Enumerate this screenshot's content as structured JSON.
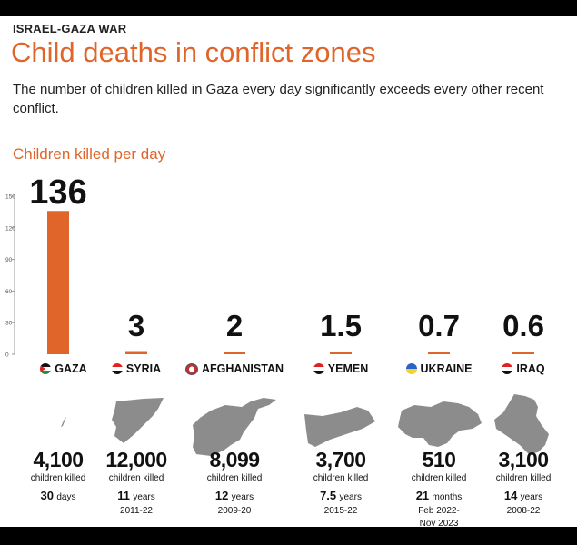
{
  "header": {
    "kicker": "ISRAEL-GAZA WAR",
    "title": "Child deaths in conflict zones",
    "subtitle": "The number of children killed in Gaza every day significantly exceeds every other recent conflict."
  },
  "colors": {
    "accent": "#e0652a",
    "map": "#8c8c8c",
    "text": "#111111"
  },
  "chart_data": {
    "type": "bar",
    "title": "Children killed per day",
    "categories": [
      "GAZA",
      "SYRIA",
      "AFGHANISTAN",
      "YEMEN",
      "UKRAINE",
      "IRAQ"
    ],
    "values": [
      136,
      3,
      2,
      1.5,
      0.7,
      0.6
    ],
    "value_labels": [
      "136",
      "3",
      "2",
      "1.5",
      "0.7",
      "0.6"
    ],
    "ylim": [
      0,
      150
    ],
    "yticks": [
      0,
      30,
      60,
      90,
      120,
      150
    ],
    "xlabel": "",
    "ylabel": ""
  },
  "countries": [
    {
      "name": "GAZA",
      "flag": "flag-gaza",
      "map_icon": "gaza-map-icon",
      "killed": "4,100",
      "label": "children killed",
      "dur_num": "30",
      "dur_unit": "days",
      "years": ""
    },
    {
      "name": "SYRIA",
      "flag": "flag-syria",
      "map_icon": "syria-map-icon",
      "killed": "12,000",
      "label": "children killed",
      "dur_num": "11",
      "dur_unit": "years",
      "years": "2011-22"
    },
    {
      "name": "AFGHANISTAN",
      "flag": "flag-afg",
      "map_icon": "afghanistan-map-icon",
      "killed": "8,099",
      "label": "children killed",
      "dur_num": "12",
      "dur_unit": "years",
      "years": "2009-20"
    },
    {
      "name": "YEMEN",
      "flag": "flag-yemen",
      "map_icon": "yemen-map-icon",
      "killed": "3,700",
      "label": "children killed",
      "dur_num": "7.5",
      "dur_unit": "years",
      "years": "2015-22"
    },
    {
      "name": "UKRAINE",
      "flag": "flag-ukraine",
      "map_icon": "ukraine-map-icon",
      "killed": "510",
      "label": "children killed",
      "dur_num": "21",
      "dur_unit": "months",
      "years": "Feb 2022-\nNov 2023"
    },
    {
      "name": "IRAQ",
      "flag": "flag-iraq",
      "map_icon": "iraq-map-icon",
      "killed": "3,100",
      "label": "children killed",
      "dur_num": "14",
      "dur_unit": "years",
      "years": "2008-22"
    }
  ]
}
